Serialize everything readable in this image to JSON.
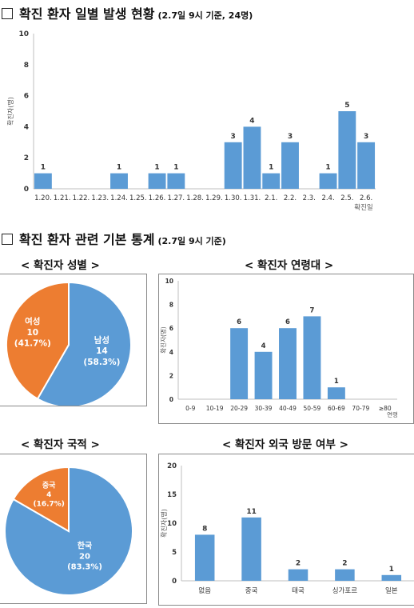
{
  "section1": {
    "title": "확진 환자 일별 발생 현황",
    "note": "(2.7일 9시 기준, 24명)"
  },
  "section2": {
    "title": "확진 환자 관련 기본 통계",
    "note": "(2.7일 9시 기준)"
  },
  "subtitles": {
    "gender": "< 확진자 성별 >",
    "age": "< 확진자 연령대 >",
    "nationality": "< 확진자 국적 >",
    "travel": "< 확진자 외국 방문 여부 >"
  },
  "colors": {
    "bar": "#5b9bd5",
    "orange": "#ed7d31",
    "axis": "#bfbfbf",
    "panel_border": "#8a8a8a"
  },
  "chart_data": [
    {
      "id": "daily",
      "type": "bar",
      "categories": [
        "1.20.",
        "1.21.",
        "1.22.",
        "1.23.",
        "1.24.",
        "1.25.",
        "1.26.",
        "1.27.",
        "1.28.",
        "1.29.",
        "1.30.",
        "1.31.",
        "2.1.",
        "2.2.",
        "2.3.",
        "2.4.",
        "2.5.",
        "2.6."
      ],
      "values": [
        1,
        0,
        0,
        0,
        1,
        0,
        1,
        1,
        0,
        0,
        3,
        4,
        1,
        3,
        0,
        1,
        5,
        3
      ],
      "ylabel": "확진자(명)",
      "xlabel": "확진일",
      "yticks": [
        0,
        2,
        4,
        6,
        8,
        10
      ],
      "ylim": [
        0,
        10
      ]
    },
    {
      "id": "gender",
      "type": "pie",
      "slices": [
        {
          "label": "남성",
          "value": 14,
          "percent": "(58.3%)",
          "color": "#5b9bd5"
        },
        {
          "label": "여성",
          "value": 10,
          "percent": "(41.7%)",
          "color": "#ed7d31"
        }
      ]
    },
    {
      "id": "age",
      "type": "bar",
      "categories": [
        "0-9",
        "10-19",
        "20-29",
        "30-39",
        "40-49",
        "50-59",
        "60-69",
        "70-79",
        "≥80"
      ],
      "values": [
        0,
        0,
        6,
        4,
        6,
        7,
        1,
        0,
        0
      ],
      "ylabel": "확진자(명)",
      "xlabel": "연령",
      "yticks": [
        0,
        2,
        4,
        6,
        8,
        10
      ],
      "ylim": [
        0,
        10
      ]
    },
    {
      "id": "nationality",
      "type": "pie",
      "slices": [
        {
          "label": "한국",
          "value": 20,
          "percent": "(83.3%)",
          "color": "#5b9bd5"
        },
        {
          "label": "중국",
          "value": 4,
          "percent": "(16.7%)",
          "color": "#ed7d31"
        }
      ]
    },
    {
      "id": "travel",
      "type": "bar",
      "categories": [
        "없음",
        "중국",
        "태국",
        "싱가포르",
        "일본"
      ],
      "values": [
        8,
        11,
        2,
        2,
        1
      ],
      "ylabel": "확진자(명)",
      "yticks": [
        0,
        5,
        10,
        15,
        20
      ],
      "ylim": [
        0,
        20
      ]
    }
  ]
}
